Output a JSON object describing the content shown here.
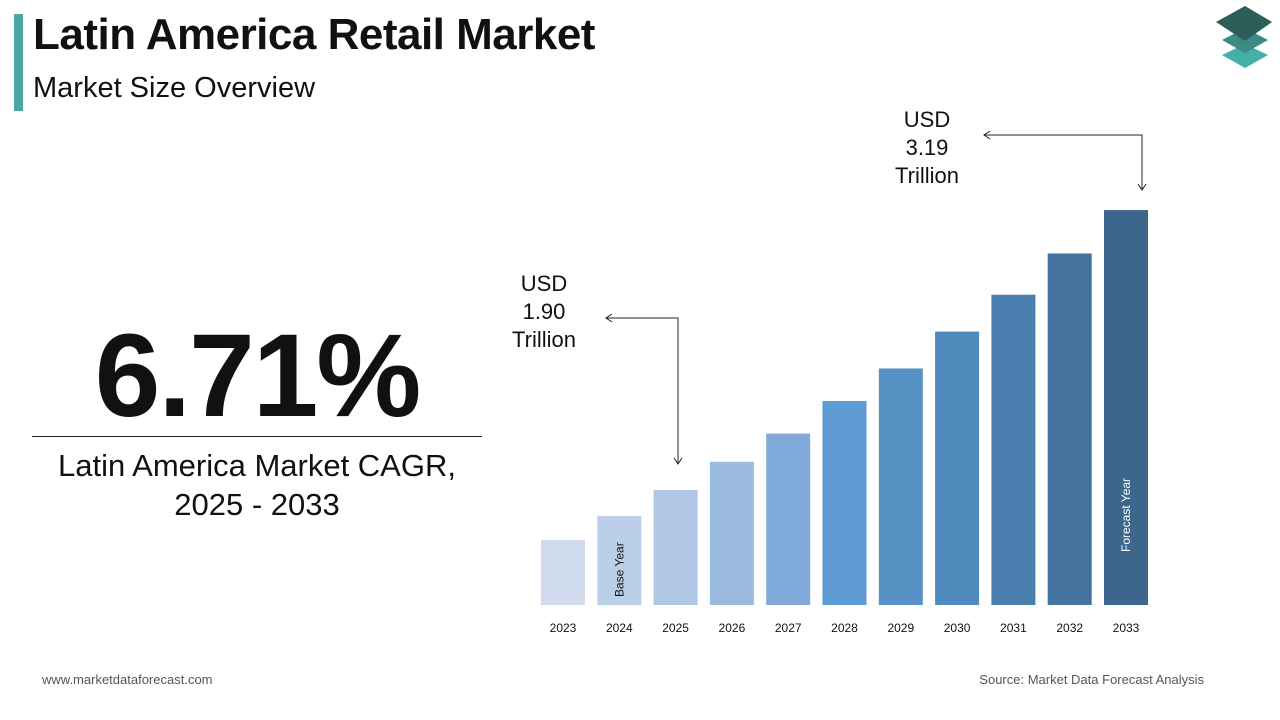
{
  "header": {
    "title": "Latin America Retail Market",
    "subtitle": "Market Size Overview"
  },
  "cagr": {
    "value": "6.71%",
    "label_line1": "Latin America Market CAGR,",
    "label_line2": "2025 - 2033"
  },
  "annotations": {
    "start": {
      "line1": "USD",
      "line2": "1.90",
      "line3": "Trillion"
    },
    "end": {
      "line1": "USD",
      "line2": "3.19",
      "line3": "Trillion"
    }
  },
  "footer": {
    "website": "www.marketdataforecast.com",
    "source": "Source: Market Data Forecast Analysis"
  },
  "logo": {
    "icon": "stacked-layers-icon",
    "colors": [
      "#2d5e5a",
      "#3d8a85",
      "#45aea6"
    ]
  },
  "chart_data": {
    "type": "bar",
    "categories": [
      "2023",
      "2024",
      "2025",
      "2026",
      "2027",
      "2028",
      "2029",
      "2030",
      "2031",
      "2032",
      "2033"
    ],
    "values": [
      1.67,
      1.78,
      1.9,
      2.03,
      2.16,
      2.31,
      2.46,
      2.63,
      2.8,
      2.99,
      3.19
    ],
    "bar_labels": {
      "2024": "Base Year",
      "2033": "Forecast Year"
    },
    "colors": [
      "#d0dcee",
      "#bccfe8",
      "#afc7e5",
      "#9bbadf",
      "#80aad9",
      "#5e9ad3",
      "#5891c4",
      "#5089bb",
      "#4a7eae",
      "#44739f",
      "#3d668c"
    ],
    "title": "",
    "xlabel": "",
    "ylabel": "",
    "grid": false
  }
}
